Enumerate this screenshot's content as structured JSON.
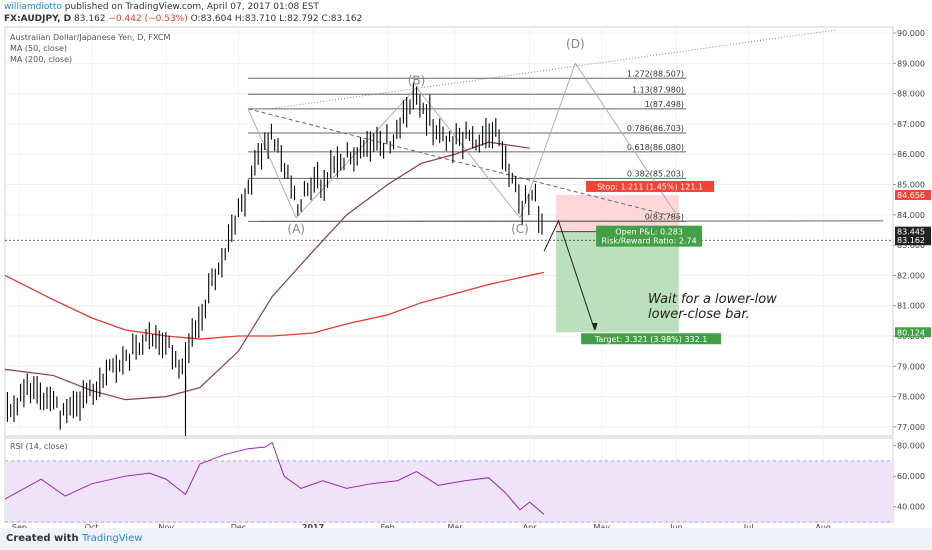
{
  "header": {
    "user": "williamdiotto",
    "published_text": " published on TradingView.com, April 07, 2017 01:08 EST",
    "symbol": "FX:AUDJPY, D",
    "price": "83.162",
    "change": "−0.442 (−0.53%)",
    "ohlc": "O:83.604 H:83.710 L:82.792 C:83.162"
  },
  "legend": {
    "title": "Australian Dollar/Japanese Yen, D, FXCM",
    "ma50": "MA (50, close)",
    "ma200": "MA (200, close)"
  },
  "rsi_label": "RSI (14, close)",
  "footer": {
    "created": "Created with",
    "brand": "TradingView"
  },
  "annotation": "Wait for a lower-low lower-close bar.",
  "colors": {
    "bars": "#000000",
    "ma50": "#8a3b4e",
    "ma200": "#e53935",
    "rsi": "#9c27b0",
    "rsi_band": "#efe3f7",
    "loss_zone": "#ffcdd2",
    "profit_zone": "#a5d6a7",
    "stop_label": "#f44336",
    "target_label": "#43a047",
    "price_label": "#222222"
  },
  "chart_data": {
    "type": "line",
    "instrument": "AUDJPY",
    "timeframe": "D",
    "x_ticks": [
      "Sep",
      "Oct",
      "Nov",
      "Dec",
      "2017",
      "Feb",
      "Mar",
      "Apr",
      "May",
      "Jun",
      "Jul",
      "Aug"
    ],
    "price_axis": {
      "ylim": [
        76.7,
        90.2
      ],
      "ticks": [
        "90.000",
        "89.000",
        "88.000",
        "87.000",
        "86.000",
        "85.000",
        "84.000",
        "83.000",
        "82.000",
        "81.000",
        "80.000",
        "79.000",
        "78.000",
        "77.000"
      ]
    },
    "price_labels": [
      {
        "text": "84.656",
        "value": 84.656,
        "color": "#f44336"
      },
      {
        "text": "83.445",
        "value": 83.445,
        "color": "#222222"
      },
      {
        "text": "83.162",
        "value": 83.162,
        "color": "#222222"
      },
      {
        "text": "80.124",
        "value": 80.124,
        "color": "#43a047"
      }
    ],
    "fib_levels": [
      {
        "label": "1.272(88.507)",
        "value": 88.507
      },
      {
        "label": "1.13(87.980)",
        "value": 87.98
      },
      {
        "label": "1(87.498)",
        "value": 87.498
      },
      {
        "label": "0.786(86.703)",
        "value": 86.703
      },
      {
        "label": "0.618(86.080)",
        "value": 86.08
      },
      {
        "label": "0.382(85.203)",
        "value": 85.203
      },
      {
        "label": "0(83.785)",
        "value": 83.785
      }
    ],
    "wave_labels": [
      {
        "text": "(A)",
        "x": "2016-12-25",
        "y": 83.4
      },
      {
        "text": "(B)",
        "x": "2017-02-13",
        "y": 88.3
      },
      {
        "text": "(C)",
        "x": "2017-03-28",
        "y": 83.4
      },
      {
        "text": "(D)",
        "x": "2017-04-20",
        "y": 89.5
      }
    ],
    "pattern_points": [
      {
        "x": "2016-12-05",
        "y": 87.5
      },
      {
        "x": "2016-12-25",
        "y": 83.9
      },
      {
        "x": "2017-02-13",
        "y": 88.2
      },
      {
        "x": "2017-03-28",
        "y": 83.9
      },
      {
        "x": "2017-04-20",
        "y": 89.0
      },
      {
        "x": "2017-06-02",
        "y": 83.9
      }
    ],
    "trendline_upper": [
      {
        "x": "2016-12-14",
        "y": 87.5
      },
      {
        "x": "2017-08-06",
        "y": 90.1
      }
    ],
    "trendline_lower": [
      {
        "x": "2016-12-05",
        "y": 87.5
      },
      {
        "x": "2017-06-02",
        "y": 83.9
      }
    ],
    "support_line": [
      {
        "x": "2016-12-10",
        "y": 83.785
      },
      {
        "x": "2017-08-26",
        "y": 83.8
      }
    ],
    "projection": [
      {
        "x": "2017-04-07",
        "y": 82.8
      },
      {
        "x": "2017-04-13",
        "y": 83.8
      },
      {
        "x": "2017-04-28",
        "y": 80.2
      }
    ],
    "position": {
      "entry": 83.445,
      "stop": 84.656,
      "target": 80.124,
      "start": "2017-04-12",
      "end": "2017-06-02",
      "stop_label": "Stop: 1.211 (1.45%) 121.1",
      "target_label": "Target: 3.321 (3.98%) 332.1",
      "pnl_label": "Open P&L: 0.283",
      "rr_label": "Risk/Reward Ratio: 2.74"
    },
    "ma50": [
      {
        "x": "2016-08-26",
        "y": 78.9
      },
      {
        "x": "2016-09-15",
        "y": 78.7
      },
      {
        "x": "2016-10-01",
        "y": 78.2
      },
      {
        "x": "2016-10-15",
        "y": 77.9
      },
      {
        "x": "2016-11-01",
        "y": 78.0
      },
      {
        "x": "2016-11-15",
        "y": 78.3
      },
      {
        "x": "2016-12-01",
        "y": 79.5
      },
      {
        "x": "2016-12-15",
        "y": 81.3
      },
      {
        "x": "2017-01-01",
        "y": 82.8
      },
      {
        "x": "2017-01-15",
        "y": 84.0
      },
      {
        "x": "2017-02-01",
        "y": 85.0
      },
      {
        "x": "2017-02-15",
        "y": 85.7
      },
      {
        "x": "2017-03-01",
        "y": 86.0
      },
      {
        "x": "2017-03-15",
        "y": 86.4
      },
      {
        "x": "2017-04-01",
        "y": 86.2
      }
    ],
    "ma200": [
      {
        "x": "2016-08-26",
        "y": 82.0
      },
      {
        "x": "2016-09-15",
        "y": 81.2
      },
      {
        "x": "2016-10-01",
        "y": 80.6
      },
      {
        "x": "2016-10-15",
        "y": 80.2
      },
      {
        "x": "2016-11-01",
        "y": 80.0
      },
      {
        "x": "2016-11-15",
        "y": 79.9
      },
      {
        "x": "2016-12-01",
        "y": 80.0
      },
      {
        "x": "2016-12-15",
        "y": 80.0
      },
      {
        "x": "2017-01-01",
        "y": 80.1
      },
      {
        "x": "2017-01-15",
        "y": 80.4
      },
      {
        "x": "2017-02-01",
        "y": 80.7
      },
      {
        "x": "2017-02-15",
        "y": 81.1
      },
      {
        "x": "2017-03-01",
        "y": 81.4
      },
      {
        "x": "2017-03-15",
        "y": 81.7
      },
      {
        "x": "2017-04-01",
        "y": 82.0
      },
      {
        "x": "2017-04-07",
        "y": 82.1
      }
    ],
    "price_path": [
      {
        "x": "2016-08-26",
        "y": 77.5
      },
      {
        "x": "2016-09-08",
        "y": 78.4
      },
      {
        "x": "2016-09-20",
        "y": 77.3
      },
      {
        "x": "2016-10-01",
        "y": 78.2
      },
      {
        "x": "2016-10-15",
        "y": 79.3
      },
      {
        "x": "2016-10-25",
        "y": 79.8
      },
      {
        "x": "2016-11-01",
        "y": 79.7
      },
      {
        "x": "2016-11-09",
        "y": 78.7
      },
      {
        "x": "2016-11-12",
        "y": 80.0
      },
      {
        "x": "2016-11-20",
        "y": 81.8
      },
      {
        "x": "2016-12-01",
        "y": 84.0
      },
      {
        "x": "2016-12-10",
        "y": 86.0
      },
      {
        "x": "2016-12-15",
        "y": 86.8
      },
      {
        "x": "2016-12-25",
        "y": 84.3
      },
      {
        "x": "2017-01-05",
        "y": 85.2
      },
      {
        "x": "2017-01-20",
        "y": 86.2
      },
      {
        "x": "2017-02-01",
        "y": 86.4
      },
      {
        "x": "2017-02-13",
        "y": 87.8
      },
      {
        "x": "2017-02-25",
        "y": 86.4
      },
      {
        "x": "2017-03-10",
        "y": 86.6
      },
      {
        "x": "2017-03-18",
        "y": 86.9
      },
      {
        "x": "2017-03-28",
        "y": 84.3
      },
      {
        "x": "2017-04-03",
        "y": 84.6
      },
      {
        "x": "2017-04-07",
        "y": 83.2
      }
    ],
    "rsi": {
      "ylim": [
        30,
        85
      ],
      "ticks": [
        "80.000",
        "60.000",
        "40.000"
      ],
      "band": [
        30,
        70
      ],
      "values": [
        {
          "x": "2016-08-26",
          "y": 45
        },
        {
          "x": "2016-09-10",
          "y": 58
        },
        {
          "x": "2016-09-20",
          "y": 47
        },
        {
          "x": "2016-10-01",
          "y": 55
        },
        {
          "x": "2016-10-15",
          "y": 60
        },
        {
          "x": "2016-10-25",
          "y": 62
        },
        {
          "x": "2016-11-01",
          "y": 58
        },
        {
          "x": "2016-11-09",
          "y": 48
        },
        {
          "x": "2016-11-15",
          "y": 68
        },
        {
          "x": "2016-11-25",
          "y": 74
        },
        {
          "x": "2016-12-05",
          "y": 78
        },
        {
          "x": "2016-12-12",
          "y": 79
        },
        {
          "x": "2016-12-15",
          "y": 82
        },
        {
          "x": "2016-12-20",
          "y": 60
        },
        {
          "x": "2016-12-27",
          "y": 52
        },
        {
          "x": "2017-01-05",
          "y": 57
        },
        {
          "x": "2017-01-15",
          "y": 52
        },
        {
          "x": "2017-01-25",
          "y": 55
        },
        {
          "x": "2017-02-05",
          "y": 57
        },
        {
          "x": "2017-02-13",
          "y": 63
        },
        {
          "x": "2017-02-22",
          "y": 54
        },
        {
          "x": "2017-03-05",
          "y": 57
        },
        {
          "x": "2017-03-15",
          "y": 59
        },
        {
          "x": "2017-03-22",
          "y": 49
        },
        {
          "x": "2017-03-28",
          "y": 38
        },
        {
          "x": "2017-04-01",
          "y": 43
        },
        {
          "x": "2017-04-07",
          "y": 35
        }
      ]
    }
  }
}
